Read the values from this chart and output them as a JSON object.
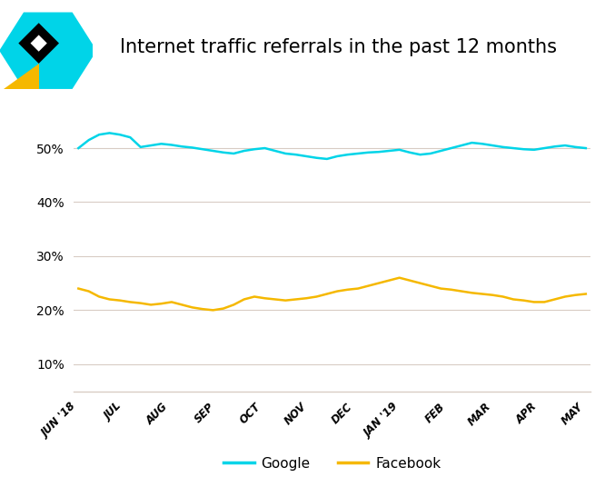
{
  "title": "Internet traffic referrals in the past 12 months",
  "x_labels": [
    "JUN '18",
    "JUL",
    "AUG",
    "SEP",
    "OCT",
    "NOV",
    "DEC",
    "JAN '19",
    "FEB",
    "MAR",
    "APR",
    "MAY"
  ],
  "google_color": "#00D4E8",
  "facebook_color": "#F5B800",
  "background_color": "#ffffff",
  "grid_color": "#d8ccc4",
  "yticks": [
    10,
    20,
    30,
    40,
    50
  ],
  "ylim": [
    5,
    58
  ],
  "title_fontsize": 15,
  "google_data": [
    50.0,
    51.5,
    52.5,
    52.8,
    52.5,
    52.0,
    50.2,
    50.5,
    50.8,
    50.6,
    50.3,
    50.1,
    49.8,
    49.5,
    49.2,
    49.0,
    49.5,
    49.8,
    50.0,
    49.5,
    49.0,
    48.8,
    48.5,
    48.2,
    48.0,
    48.5,
    48.8,
    49.0,
    49.2,
    49.3,
    49.5,
    49.7,
    49.2,
    48.8,
    49.0,
    49.5,
    50.0,
    50.5,
    51.0,
    50.8,
    50.5,
    50.2,
    50.0,
    49.8,
    49.7,
    50.0,
    50.3,
    50.5,
    50.2,
    50.0
  ],
  "facebook_data": [
    24.0,
    23.5,
    22.5,
    22.0,
    21.8,
    21.5,
    21.3,
    21.0,
    21.2,
    21.5,
    21.0,
    20.5,
    20.2,
    20.0,
    20.3,
    21.0,
    22.0,
    22.5,
    22.2,
    22.0,
    21.8,
    22.0,
    22.2,
    22.5,
    23.0,
    23.5,
    23.8,
    24.0,
    24.5,
    25.0,
    25.5,
    26.0,
    25.5,
    25.0,
    24.5,
    24.0,
    23.8,
    23.5,
    23.2,
    23.0,
    22.8,
    22.5,
    22.0,
    21.8,
    21.5,
    21.5,
    22.0,
    22.5,
    22.8,
    23.0
  ],
  "legend_google": "Google",
  "legend_facebook": "Facebook",
  "logo_cyan": "#00D4E8",
  "logo_black": "#000000",
  "logo_gold": "#F5B800"
}
